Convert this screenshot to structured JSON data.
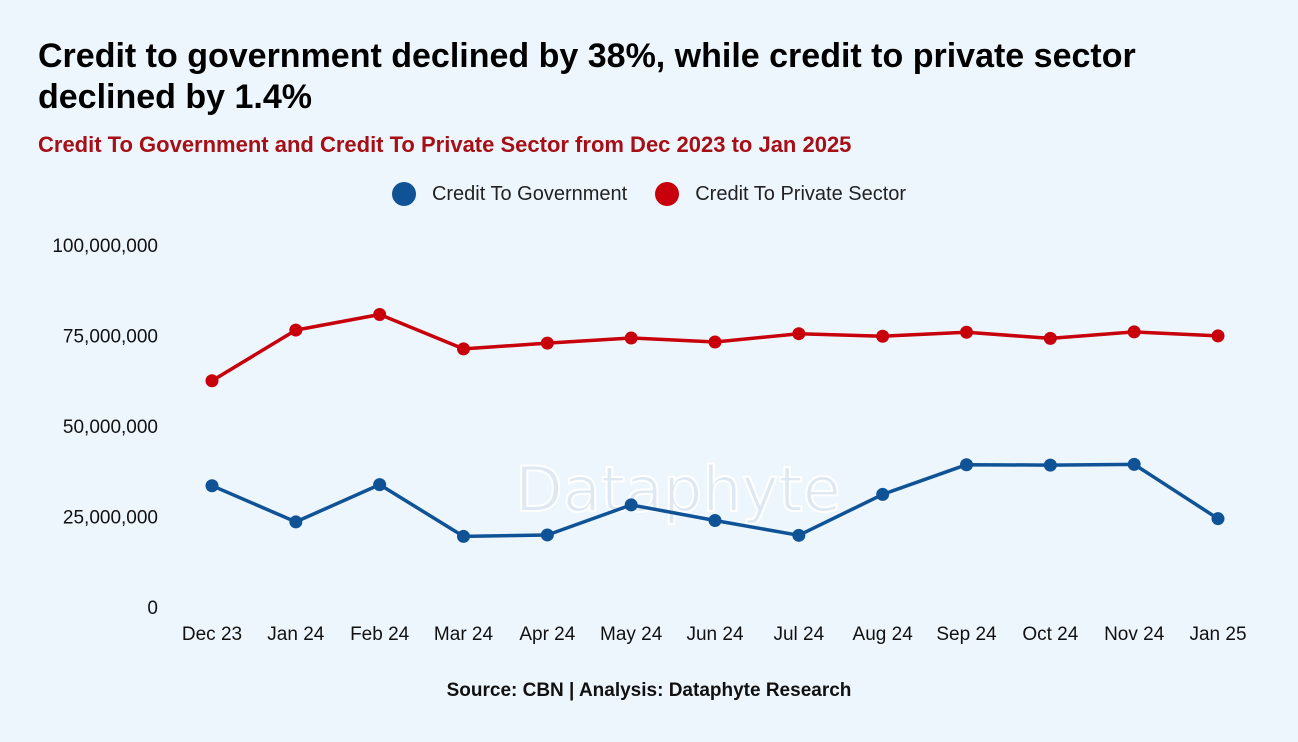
{
  "header": {
    "title": "Credit to government declined by 38%, while credit to private sector declined by 1.4%",
    "subtitle": "Credit To Government and Credit To Private Sector from Dec 2023 to Jan 2025"
  },
  "footer": {
    "source": "Source: CBN | Analysis: Dataphyte Research"
  },
  "watermark": "Dataphyte",
  "chart_data": {
    "type": "line",
    "title": "Credit To Government and Credit To Private Sector from Dec 2023 to Jan 2025",
    "xlabel": "",
    "ylabel": "",
    "categories": [
      "Dec 23",
      "Jan 24",
      "Feb 24",
      "Mar 24",
      "Apr 24",
      "May 24",
      "Jun 24",
      "Jul 24",
      "Aug 24",
      "Sep 24",
      "Oct 24",
      "Nov 24",
      "Jan 25"
    ],
    "ylim": [
      0,
      100000000
    ],
    "yticks": [
      0,
      25000000,
      50000000,
      75000000,
      100000000
    ],
    "ytick_labels": [
      "0",
      "25,000,000",
      "50,000,000",
      "75,000,000",
      "100,000,000"
    ],
    "grid": false,
    "legend_position": "top-center",
    "series": [
      {
        "name": "Credit To Government",
        "color": "#0f5396",
        "values": [
          33500000,
          23500000,
          33800000,
          19500000,
          19900000,
          28200000,
          23900000,
          19800000,
          31100000,
          39300000,
          39200000,
          39400000,
          24400000
        ]
      },
      {
        "name": "Credit To Private Sector",
        "color": "#c7000b",
        "values": [
          62500000,
          76500000,
          80800000,
          71300000,
          72900000,
          74300000,
          73200000,
          75500000,
          74800000,
          75900000,
          74200000,
          76000000,
          74900000
        ]
      }
    ]
  }
}
